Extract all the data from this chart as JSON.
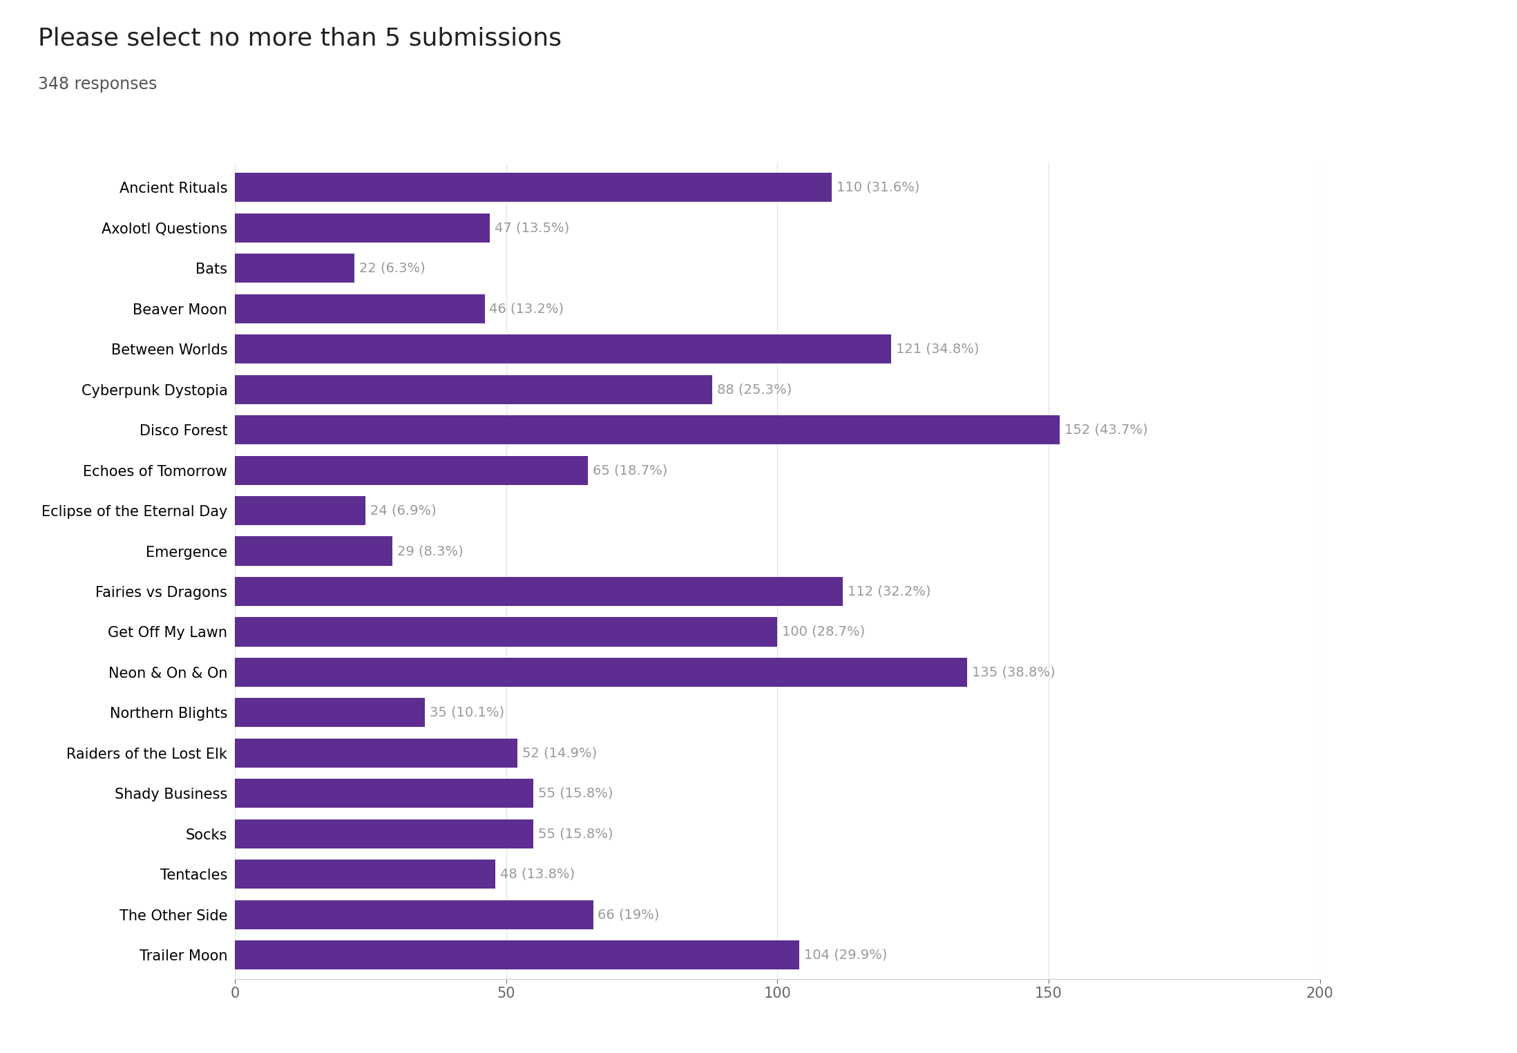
{
  "title": "Please select no more than 5 submissions",
  "subtitle": "348 responses",
  "categories": [
    "Ancient Rituals",
    "Axolotl Questions",
    "Bats",
    "Beaver Moon",
    "Between Worlds",
    "Cyberpunk Dystopia",
    "Disco Forest",
    "Echoes of Tomorrow",
    "Eclipse of the Eternal Day",
    "Emergence",
    "Fairies vs Dragons",
    "Get Off My Lawn",
    "Neon & On & On",
    "Northern Blights",
    "Raiders of the Lost Elk",
    "Shady Business",
    "Socks",
    "Tentacles",
    "The Other Side",
    "Trailer Moon"
  ],
  "values": [
    110,
    47,
    22,
    46,
    121,
    88,
    152,
    65,
    24,
    29,
    112,
    100,
    135,
    35,
    52,
    55,
    55,
    48,
    66,
    104
  ],
  "labels": [
    "110 (31.6%)",
    "47 (13.5%)",
    "22 (6.3%)",
    "46 (13.2%)",
    "121 (34.8%)",
    "88 (25.3%)",
    "152 (43.7%)",
    "65 (18.7%)",
    "24 (6.9%)",
    "29 (8.3%)",
    "112 (32.2%)",
    "100 (28.7%)",
    "135 (38.8%)",
    "35 (10.1%)",
    "52 (14.9%)",
    "55 (15.8%)",
    "55 (15.8%)",
    "48 (13.8%)",
    "66 (19%)",
    "104 (29.9%)"
  ],
  "bar_color": "#5e2d91",
  "background_color": "#ffffff",
  "xlim": [
    0,
    200
  ],
  "xticks": [
    0,
    50,
    100,
    150,
    200
  ],
  "title_fontsize": 26,
  "subtitle_fontsize": 17,
  "label_fontsize": 15,
  "tick_fontsize": 15,
  "bar_height": 0.72,
  "annotation_color": "#999999",
  "annotation_fontsize": 14
}
